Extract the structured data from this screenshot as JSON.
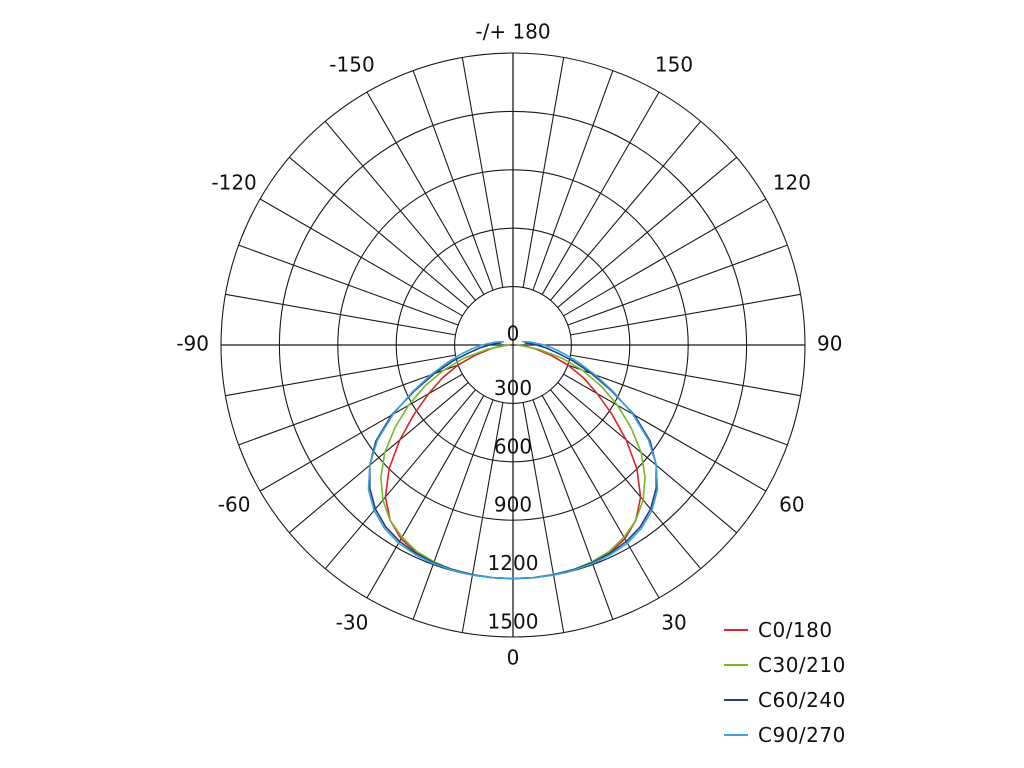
{
  "chart_data": {
    "type": "polar",
    "radial_ticks": [
      300,
      600,
      900,
      1200,
      1500
    ],
    "rmax": 1500,
    "angle_tick_labels": [
      "0",
      "30",
      "60",
      "90",
      "120",
      "150",
      "-/+ 180",
      "-150",
      "-120",
      "-90",
      "-60",
      "-30"
    ],
    "angle_tick_values": [
      0,
      30,
      60,
      90,
      120,
      150,
      180,
      -150,
      -120,
      -90,
      -60,
      -30
    ],
    "grid": true,
    "legend_position": "bottom-right",
    "series": [
      {
        "name": "C0/180",
        "color": "#d6262b",
        "angles": [
          -90,
          -85,
          -80,
          -75,
          -70,
          -65,
          -60,
          -55,
          -50,
          -45,
          -40,
          -35,
          -30,
          -25,
          -20,
          -15,
          -10,
          -5,
          0,
          5,
          10,
          15,
          20,
          25,
          30,
          35,
          40,
          45,
          50,
          55,
          60,
          65,
          70,
          75,
          80,
          85,
          90
        ],
        "values": [
          20,
          60,
          120,
          200,
          300,
          400,
          500,
          620,
          760,
          900,
          1020,
          1100,
          1150,
          1175,
          1190,
          1195,
          1198,
          1200,
          1200,
          1200,
          1198,
          1195,
          1190,
          1175,
          1150,
          1100,
          1020,
          900,
          760,
          620,
          500,
          400,
          300,
          200,
          120,
          60,
          20
        ]
      },
      {
        "name": "C30/210",
        "color": "#76b82a",
        "angles": [
          -90,
          -85,
          -80,
          -75,
          -70,
          -65,
          -60,
          -55,
          -50,
          -45,
          -40,
          -35,
          -30,
          -25,
          -20,
          -15,
          -10,
          -5,
          0,
          5,
          10,
          15,
          20,
          25,
          30,
          35,
          40,
          45,
          50,
          55,
          60,
          65,
          70,
          75,
          80,
          85,
          90
        ],
        "values": [
          15,
          50,
          140,
          260,
          380,
          500,
          620,
          740,
          860,
          960,
          1040,
          1100,
          1140,
          1170,
          1185,
          1195,
          1198,
          1200,
          1200,
          1200,
          1198,
          1195,
          1185,
          1170,
          1140,
          1100,
          1040,
          960,
          860,
          740,
          620,
          500,
          380,
          260,
          140,
          50,
          15
        ]
      },
      {
        "name": "C60/240",
        "color": "#233e8b",
        "angles": [
          -100,
          -95,
          -90,
          -85,
          -80,
          -75,
          -70,
          -65,
          -60,
          -55,
          -50,
          -45,
          -40,
          -35,
          -30,
          -25,
          -20,
          -15,
          -10,
          -5,
          0,
          5,
          10,
          15,
          20,
          25,
          30,
          35,
          40,
          45,
          50,
          55,
          60,
          65,
          70,
          75,
          80,
          85,
          90,
          95,
          100
        ],
        "values": [
          60,
          90,
          120,
          170,
          230,
          320,
          430,
          560,
          720,
          860,
          960,
          1040,
          1100,
          1140,
          1165,
          1180,
          1190,
          1195,
          1198,
          1200,
          1200,
          1200,
          1198,
          1195,
          1190,
          1180,
          1165,
          1140,
          1100,
          1040,
          960,
          860,
          720,
          560,
          430,
          320,
          230,
          170,
          120,
          90,
          60
        ]
      },
      {
        "name": "C90/270",
        "color": "#3aa5d4",
        "angles": [
          -110,
          -100,
          -90,
          -85,
          -80,
          -75,
          -70,
          -65,
          -60,
          -55,
          -50,
          -45,
          -40,
          -35,
          -30,
          -25,
          -20,
          -15,
          -10,
          -5,
          0,
          5,
          10,
          15,
          20,
          25,
          30,
          35,
          40,
          45,
          50,
          55,
          60,
          65,
          70,
          75,
          80,
          85,
          90,
          100,
          110
        ],
        "values": [
          50,
          90,
          160,
          210,
          270,
          350,
          450,
          570,
          710,
          850,
          960,
          1050,
          1110,
          1150,
          1175,
          1188,
          1195,
          1198,
          1200,
          1200,
          1200,
          1200,
          1200,
          1198,
          1195,
          1188,
          1175,
          1150,
          1110,
          1050,
          960,
          850,
          710,
          570,
          450,
          350,
          270,
          210,
          160,
          90,
          50
        ]
      }
    ]
  }
}
